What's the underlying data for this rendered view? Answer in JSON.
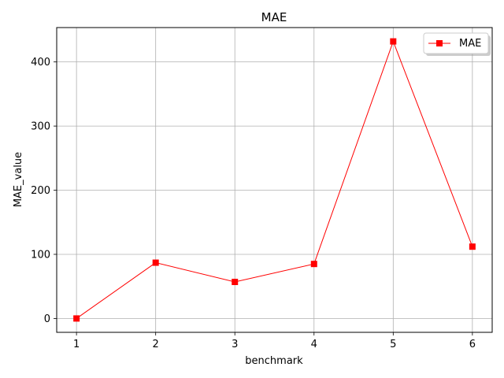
{
  "chart_data": {
    "type": "line",
    "title": "MAE",
    "xlabel": "benchmark",
    "ylabel": "MAE_value",
    "x": [
      1,
      2,
      3,
      4,
      5,
      6
    ],
    "series": [
      {
        "name": "MAE",
        "values": [
          0,
          87,
          57,
          85,
          432,
          112
        ],
        "color": "#ff0000",
        "marker": "square"
      }
    ],
    "xlim": [
      0.75,
      6.25
    ],
    "ylim": [
      -21.6,
      453.6
    ],
    "xticks": [
      1,
      2,
      3,
      4,
      5,
      6
    ],
    "yticks": [
      0,
      100,
      200,
      300,
      400
    ],
    "grid": true,
    "legend": "top-right"
  }
}
